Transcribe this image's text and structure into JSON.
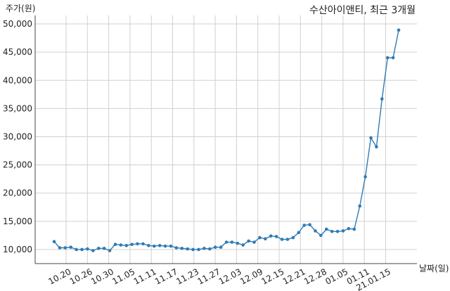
{
  "chart_data": {
    "type": "line",
    "title": "수산아이앤티, 최근 3개월",
    "ylabel": "주가(원)",
    "xlabel": "날짜(일)",
    "ylim": [
      7500,
      51500
    ],
    "yticks": [
      10000,
      15000,
      20000,
      25000,
      30000,
      35000,
      40000,
      45000,
      50000
    ],
    "ytick_labels": [
      "10,000",
      "15,000",
      "20,000",
      "25,000",
      "30,000",
      "35,000",
      "40,000",
      "45,000",
      "50,000"
    ],
    "xticks": [
      "10.20",
      "10.26",
      "10.30",
      "11.05",
      "11.11",
      "11.17",
      "11.23",
      "11.27",
      "12.03",
      "12.09",
      "12.15",
      "12.21",
      "12.28",
      "01.05",
      "01.11",
      "21.01.15"
    ],
    "grid": true,
    "color": "#2f7bb5",
    "series": [
      {
        "values": [
          11400,
          10300,
          10300,
          10400,
          10000,
          10000,
          10100,
          9800,
          10200,
          10200,
          9800,
          10900,
          10800,
          10700,
          10900,
          11000,
          11000,
          10700,
          10600,
          10700,
          10600,
          10600,
          10300,
          10200,
          10100,
          10000,
          10000,
          10200,
          10100,
          10400,
          10400,
          11300,
          11300,
          11100,
          10800,
          11500,
          11300,
          12100,
          11900,
          12400,
          12300,
          11800,
          11800,
          12100,
          13000,
          14300,
          14400,
          13300,
          12500,
          13600,
          13200,
          13200,
          13300,
          13700,
          13600,
          17700,
          22900,
          29800,
          28200,
          36700,
          44000,
          44000,
          48900
        ]
      }
    ]
  }
}
